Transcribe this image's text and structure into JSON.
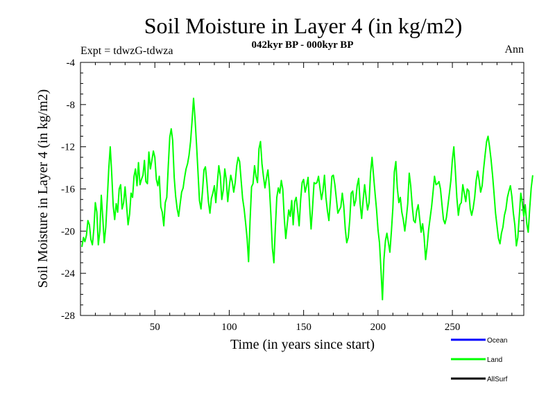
{
  "chart_data": {
    "type": "line",
    "title": "Soil Moisture in Layer 4 (in kg/m2)",
    "subtitle": "042kyr BP - 000kyr BP",
    "left_note": "Expt = tdwzG-tdwza",
    "right_note": "Ann",
    "xlabel": "Time (in years since start)",
    "ylabel": "Soil Moisture in Layer 4 (in kg/m2)",
    "xlim": [
      0,
      298
    ],
    "ylim": [
      -28,
      -4
    ],
    "x_ticks": [
      50,
      100,
      150,
      200,
      250
    ],
    "y_ticks": [
      -4,
      -8,
      -12,
      -16,
      -20,
      -24,
      -28
    ],
    "legend": [
      {
        "name": "Ocean",
        "color": "#0000ff"
      },
      {
        "name": "Land",
        "color": "#00ff00"
      },
      {
        "name": "AllSurf",
        "color": "#000000"
      }
    ],
    "series": [
      {
        "name": "Land",
        "color": "#00ff00",
        "x_start": 1,
        "x_step": 1,
        "values": [
          -21.5,
          -20.6,
          -21.0,
          -20.4,
          -19.0,
          -19.4,
          -20.8,
          -21.3,
          -19.8,
          -17.3,
          -18.2,
          -21.3,
          -20.0,
          -16.6,
          -18.8,
          -21.1,
          -19.6,
          -17.0,
          -14.2,
          -12.0,
          -14.5,
          -17.6,
          -18.9,
          -17.4,
          -18.2,
          -16.0,
          -15.6,
          -17.9,
          -17.3,
          -15.8,
          -17.6,
          -19.4,
          -18.4,
          -16.4,
          -16.8,
          -14.8,
          -14.1,
          -15.7,
          -13.5,
          -15.6,
          -15.1,
          -14.7,
          -13.3,
          -15.3,
          -15.5,
          -12.5,
          -14.1,
          -13.3,
          -12.4,
          -13.0,
          -15.1,
          -15.7,
          -14.8,
          -17.7,
          -18.2,
          -19.5,
          -17.3,
          -16.8,
          -13.9,
          -11.1,
          -10.3,
          -11.4,
          -14.9,
          -16.7,
          -17.9,
          -18.6,
          -17.4,
          -16.3,
          -15.9,
          -14.9,
          -14.1,
          -13.6,
          -12.8,
          -11.5,
          -9.6,
          -7.4,
          -9.3,
          -11.8,
          -14.4,
          -17.1,
          -17.9,
          -16.3,
          -14.2,
          -13.9,
          -15.4,
          -17.2,
          -18.3,
          -16.9,
          -16.4,
          -15.7,
          -17.3,
          -15.4,
          -13.8,
          -14.8,
          -17.0,
          -16.1,
          -14.1,
          -15.1,
          -17.2,
          -15.8,
          -14.7,
          -15.3,
          -16.3,
          -15.4,
          -13.8,
          -13.0,
          -13.4,
          -15.2,
          -16.9,
          -17.9,
          -19.2,
          -20.7,
          -22.9,
          -19.1,
          -15.8,
          -15.5,
          -13.8,
          -14.8,
          -15.4,
          -12.2,
          -11.5,
          -13.6,
          -14.8,
          -15.9,
          -15.0,
          -14.2,
          -15.8,
          -18.5,
          -21.6,
          -23.0,
          -19.7,
          -16.8,
          -15.9,
          -16.4,
          -15.2,
          -16.0,
          -18.8,
          -20.7,
          -19.3,
          -18.0,
          -18.6,
          -17.1,
          -19.4,
          -17.2,
          -16.8,
          -18.1,
          -19.5,
          -17.0,
          -15.4,
          -15.1,
          -16.3,
          -15.7,
          -14.9,
          -17.5,
          -19.8,
          -17.8,
          -15.4,
          -15.5,
          -15.4,
          -14.8,
          -15.9,
          -17.0,
          -16.2,
          -14.7,
          -16.8,
          -18.1,
          -19.0,
          -17.1,
          -14.8,
          -14.7,
          -15.6,
          -16.9,
          -18.3,
          -18.0,
          -17.7,
          -16.4,
          -17.6,
          -19.8,
          -21.1,
          -20.6,
          -19.0,
          -16.4,
          -16.2,
          -17.6,
          -17.1,
          -15.7,
          -15.0,
          -17.4,
          -18.8,
          -17.1,
          -15.6,
          -16.8,
          -18.0,
          -17.3,
          -14.5,
          -13.0,
          -14.7,
          -16.4,
          -17.9,
          -19.9,
          -21.1,
          -23.6,
          -26.5,
          -22.7,
          -20.9,
          -20.2,
          -21.1,
          -22.0,
          -20.0,
          -17.8,
          -14.4,
          -13.4,
          -15.9,
          -17.3,
          -16.8,
          -18.2,
          -18.9,
          -20.0,
          -18.8,
          -17.4,
          -14.5,
          -15.7,
          -17.6,
          -19.0,
          -19.2,
          -18.1,
          -17.5,
          -18.8,
          -20.1,
          -19.3,
          -20.5,
          -22.7,
          -21.5,
          -19.9,
          -18.8,
          -17.7,
          -16.3,
          -14.8,
          -15.6,
          -15.5,
          -15.3,
          -16.0,
          -17.5,
          -18.9,
          -19.3,
          -18.7,
          -17.6,
          -16.4,
          -15.2,
          -13.2,
          -12.0,
          -14.3,
          -16.8,
          -18.5,
          -17.5,
          -17.3,
          -15.6,
          -16.4,
          -17.2,
          -16.0,
          -16.2,
          -17.9,
          -18.5,
          -17.8,
          -16.8,
          -15.2,
          -14.3,
          -15.2,
          -16.3,
          -15.7,
          -14.1,
          -12.8,
          -11.5,
          -11.0,
          -12.0,
          -13.2,
          -14.7,
          -16.4,
          -18.3,
          -19.5,
          -20.7,
          -21.2,
          -20.2,
          -19.6,
          -18.5,
          -17.9,
          -16.8,
          -16.2,
          -15.7,
          -16.7,
          -18.3,
          -19.4,
          -21.4,
          -20.6,
          -18.5,
          -16.4,
          -17.3,
          -18.6,
          -17.5,
          -19.3,
          -20.1,
          -17.8,
          -15.9,
          -14.7
        ]
      },
      {
        "name": "Ocean",
        "color": "#0000ff",
        "values": []
      },
      {
        "name": "AllSurf",
        "color": "#000000",
        "values": []
      }
    ]
  }
}
